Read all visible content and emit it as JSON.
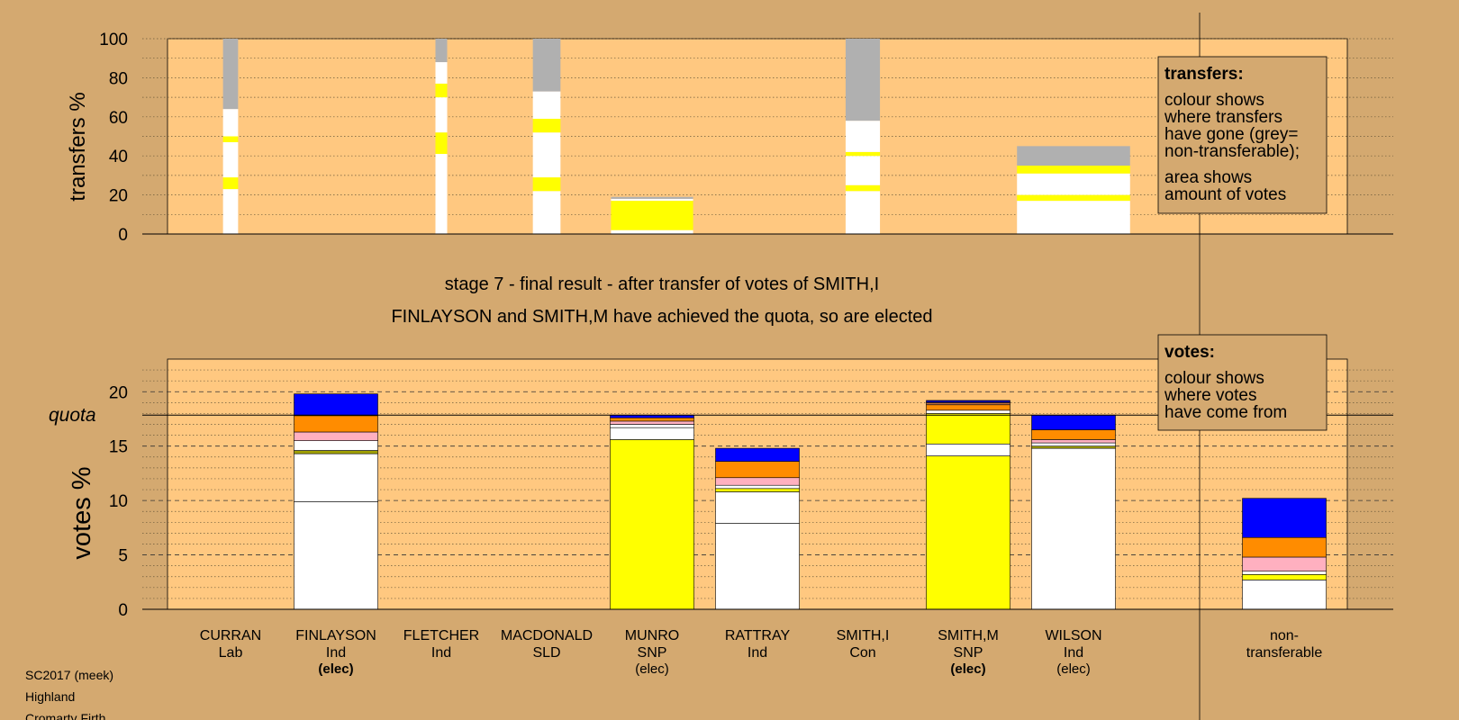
{
  "colors": {
    "background": "#d4a970",
    "plot_bg": "#ffc880",
    "white": "#ffffff",
    "yellow": "#ffff00",
    "blue": "#0000ff",
    "orange": "#ff8c00",
    "pink": "#ffb0c0",
    "grey": "#b0b0b0",
    "olive": "#a0a000",
    "navy": "#0000a0",
    "brown": "#c07040",
    "green": "#40a040"
  },
  "stage_title": "stage 7 - final result - after transfer of votes of SMITH,I",
  "stage_subtitle": "FINLAYSON and SMITH,M have achieved the quota, so are elected",
  "legend_transfers": {
    "heading": "transfers:",
    "lines": [
      "colour shows",
      "where transfers",
      "have gone (grey=",
      "non-transferable);"
    ],
    "lines2": [
      "area shows",
      "amount of votes"
    ]
  },
  "legend_votes": {
    "heading": "votes:",
    "lines": [
      "colour shows",
      "where votes",
      "have come from"
    ]
  },
  "candidates": [
    {
      "name": "CURRAN",
      "party": "Lab",
      "status": ""
    },
    {
      "name": "FINLAYSON",
      "party": "Ind",
      "status": "(elec)"
    },
    {
      "name": "FLETCHER",
      "party": "Ind",
      "status": ""
    },
    {
      "name": "MACDONALD",
      "party": "SLD",
      "status": ""
    },
    {
      "name": "MUNRO",
      "party": "SNP",
      "status": "(elec)"
    },
    {
      "name": "RATTRAY",
      "party": "Ind",
      "status": ""
    },
    {
      "name": "SMITH,I",
      "party": "Con",
      "status": ""
    },
    {
      "name": "SMITH,M",
      "party": "SNP",
      "status": "(elec)"
    },
    {
      "name": "WILSON",
      "party": "Ind",
      "status": "(elec)"
    }
  ],
  "nontransferable_label": [
    "non-",
    "transferable"
  ],
  "footer": [
    "SC2017 (meek)",
    "Highland",
    "Cromarty Firth"
  ],
  "chart_data": [
    {
      "type": "bar",
      "title": "",
      "ylabel": "transfers %",
      "ylim": [
        0,
        100
      ],
      "yticks": [
        0,
        20,
        40,
        60,
        80,
        100
      ],
      "note": "stacked transfer bars; bar width proportional to votes transferred",
      "bars": [
        {
          "slot": 0,
          "width_rel": 0.18,
          "segments": [
            {
              "color": "white",
              "from": 0,
              "to": 23
            },
            {
              "color": "yellow",
              "from": 23,
              "to": 29
            },
            {
              "color": "white",
              "from": 29,
              "to": 47
            },
            {
              "color": "yellow",
              "from": 47,
              "to": 50
            },
            {
              "color": "white",
              "from": 50,
              "to": 64
            },
            {
              "color": "grey",
              "from": 64,
              "to": 100
            }
          ]
        },
        {
          "slot": 2,
          "width_rel": 0.14,
          "segments": [
            {
              "color": "white",
              "from": 0,
              "to": 41
            },
            {
              "color": "yellow",
              "from": 41,
              "to": 52
            },
            {
              "color": "white",
              "from": 52,
              "to": 70
            },
            {
              "color": "yellow",
              "from": 70,
              "to": 77
            },
            {
              "color": "white",
              "from": 77,
              "to": 88
            },
            {
              "color": "grey",
              "from": 88,
              "to": 100
            }
          ]
        },
        {
          "slot": 3,
          "width_rel": 0.33,
          "segments": [
            {
              "color": "white",
              "from": 0,
              "to": 22
            },
            {
              "color": "yellow",
              "from": 22,
              "to": 29
            },
            {
              "color": "white",
              "from": 29,
              "to": 52
            },
            {
              "color": "yellow",
              "from": 52,
              "to": 59
            },
            {
              "color": "white",
              "from": 59,
              "to": 73
            },
            {
              "color": "grey",
              "from": 73,
              "to": 100
            }
          ]
        },
        {
          "slot": 4,
          "width_rel": 0.98,
          "segments": [
            {
              "color": "white",
              "from": 0,
              "to": 2
            },
            {
              "color": "yellow",
              "from": 2,
              "to": 17
            },
            {
              "color": "white",
              "from": 17,
              "to": 18
            },
            {
              "color": "grey",
              "from": 18,
              "to": 19
            }
          ]
        },
        {
          "slot": 6,
          "width_rel": 0.41,
          "segments": [
            {
              "color": "white",
              "from": 0,
              "to": 22
            },
            {
              "color": "yellow",
              "from": 22,
              "to": 25
            },
            {
              "color": "white",
              "from": 25,
              "to": 40
            },
            {
              "color": "yellow",
              "from": 40,
              "to": 42
            },
            {
              "color": "white",
              "from": 42,
              "to": 58
            },
            {
              "color": "grey",
              "from": 58,
              "to": 100
            }
          ]
        },
        {
          "slot": 8,
          "width_rel": 1.35,
          "segments": [
            {
              "color": "white",
              "from": 0,
              "to": 17
            },
            {
              "color": "yellow",
              "from": 17,
              "to": 20
            },
            {
              "color": "white",
              "from": 20,
              "to": 31
            },
            {
              "color": "yellow",
              "from": 31,
              "to": 35
            },
            {
              "color": "grey",
              "from": 35,
              "to": 45
            }
          ]
        }
      ]
    },
    {
      "type": "bar",
      "title": "",
      "ylabel": "votes %",
      "ylim": [
        0,
        23
      ],
      "yticks": [
        0,
        5,
        10,
        15,
        20
      ],
      "quota": 17.85,
      "quota_label": "quota",
      "bars": [
        {
          "slot": 1,
          "segments": [
            {
              "color": "white",
              "from": 0,
              "to": 9.9
            },
            {
              "color": "white",
              "from": 9.9,
              "to": 14.3
            },
            {
              "color": "olive",
              "from": 14.3,
              "to": 14.6
            },
            {
              "color": "white",
              "from": 14.6,
              "to": 15.5
            },
            {
              "color": "pink",
              "from": 15.5,
              "to": 16.3
            },
            {
              "color": "orange",
              "from": 16.3,
              "to": 17.8
            },
            {
              "color": "blue",
              "from": 17.8,
              "to": 19.8
            }
          ]
        },
        {
          "slot": 4,
          "segments": [
            {
              "color": "yellow",
              "from": 0,
              "to": 15.6
            },
            {
              "color": "white",
              "from": 15.6,
              "to": 16.7
            },
            {
              "color": "white",
              "from": 16.7,
              "to": 17.0
            },
            {
              "color": "pink",
              "from": 17.0,
              "to": 17.3
            },
            {
              "color": "orange",
              "from": 17.3,
              "to": 17.6
            },
            {
              "color": "blue",
              "from": 17.6,
              "to": 17.85
            }
          ]
        },
        {
          "slot": 5,
          "segments": [
            {
              "color": "white",
              "from": 0,
              "to": 7.9
            },
            {
              "color": "white",
              "from": 7.9,
              "to": 10.8
            },
            {
              "color": "yellow",
              "from": 10.8,
              "to": 11.1
            },
            {
              "color": "white",
              "from": 11.1,
              "to": 11.4
            },
            {
              "color": "pink",
              "from": 11.4,
              "to": 12.1
            },
            {
              "color": "orange",
              "from": 12.1,
              "to": 13.6
            },
            {
              "color": "blue",
              "from": 13.6,
              "to": 14.8
            }
          ]
        },
        {
          "slot": 7,
          "segments": [
            {
              "color": "yellow",
              "from": 0,
              "to": 14.1
            },
            {
              "color": "white",
              "from": 14.1,
              "to": 15.2
            },
            {
              "color": "yellow",
              "from": 15.2,
              "to": 18.0
            },
            {
              "color": "white",
              "from": 18.0,
              "to": 18.3
            },
            {
              "color": "orange",
              "from": 18.3,
              "to": 18.8
            },
            {
              "color": "brown",
              "from": 18.8,
              "to": 19.0
            },
            {
              "color": "navy",
              "from": 19.0,
              "to": 19.2
            }
          ]
        },
        {
          "slot": 8,
          "segments": [
            {
              "color": "white",
              "from": 0,
              "to": 14.8
            },
            {
              "color": "olive",
              "from": 14.8,
              "to": 15.0
            },
            {
              "color": "white",
              "from": 15.0,
              "to": 15.3
            },
            {
              "color": "pink",
              "from": 15.3,
              "to": 15.6
            },
            {
              "color": "orange",
              "from": 15.6,
              "to": 16.5
            },
            {
              "color": "blue",
              "from": 16.5,
              "to": 17.85
            }
          ]
        },
        {
          "slot": 10,
          "segments": [
            {
              "color": "white",
              "from": 0,
              "to": 2.7
            },
            {
              "color": "yellow",
              "from": 2.7,
              "to": 3.2
            },
            {
              "color": "white",
              "from": 3.2,
              "to": 3.5
            },
            {
              "color": "pink",
              "from": 3.5,
              "to": 4.8
            },
            {
              "color": "orange",
              "from": 4.8,
              "to": 6.6
            },
            {
              "color": "blue",
              "from": 6.6,
              "to": 10.2
            }
          ]
        }
      ]
    }
  ]
}
